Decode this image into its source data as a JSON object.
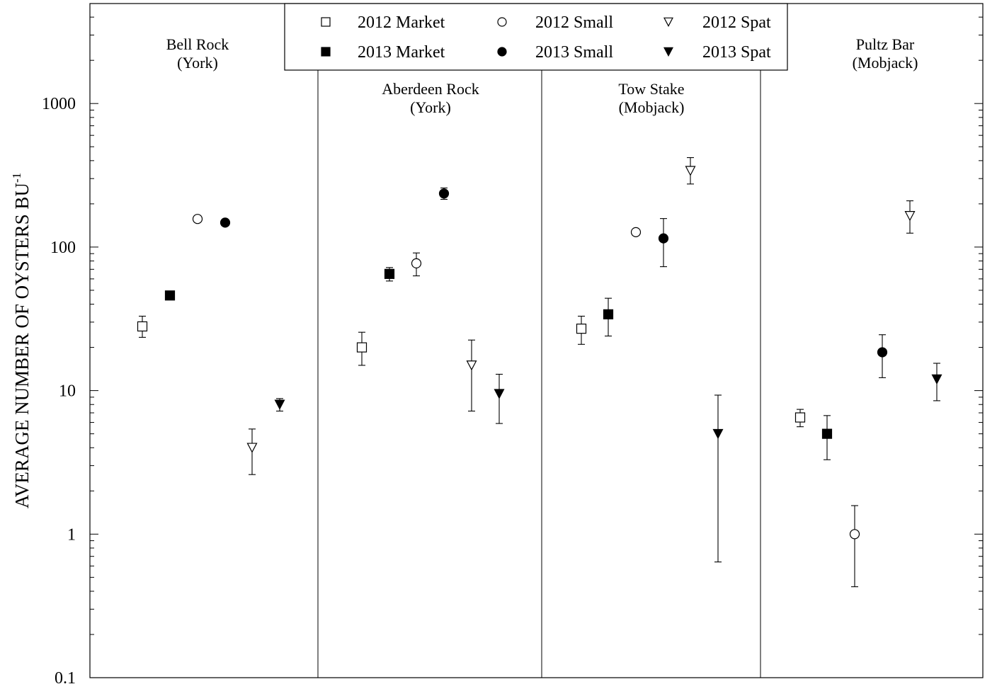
{
  "chart_data": {
    "type": "scatter",
    "ylabel": "AVERAGE NUMBER OF OYSTERS BU",
    "ylabel_superscript": "-1",
    "yscale": "log",
    "ylim": [
      0.1,
      5000
    ],
    "ytick_values": [
      0.1,
      1,
      10,
      100,
      1000
    ],
    "ytick_labels": [
      "0.1",
      "1",
      "10",
      "100",
      "1000"
    ],
    "grid": false,
    "legend_position": "top-center",
    "sites": [
      {
        "name": "Bell Rock",
        "region": "(York)"
      },
      {
        "name": "Aberdeen Rock",
        "region": "(York)"
      },
      {
        "name": "Tow Stake",
        "region": "(Mobjack)"
      },
      {
        "name": "Pultz Bar",
        "region": "(Mobjack)"
      }
    ],
    "series": [
      {
        "name": "2012 Market",
        "marker": "square",
        "filled": false,
        "values": [
          28,
          20,
          27,
          6.5
        ],
        "err_low": [
          23.5,
          15,
          21,
          5.6
        ],
        "err_high": [
          33,
          25.5,
          33,
          7.4
        ]
      },
      {
        "name": "2013 Market",
        "marker": "square",
        "filled": true,
        "values": [
          46,
          65,
          34,
          5
        ],
        "err_low": [
          46,
          58,
          24,
          3.3
        ],
        "err_high": [
          46,
          72,
          44,
          6.7
        ]
      },
      {
        "name": "2012 Small",
        "marker": "circle",
        "filled": false,
        "values": [
          157,
          77,
          127,
          1
        ],
        "err_low": [
          157,
          63,
          127,
          0.43
        ],
        "err_high": [
          157,
          91,
          127,
          1.58
        ]
      },
      {
        "name": "2013 Small",
        "marker": "circle",
        "filled": true,
        "values": [
          148,
          236,
          115,
          18.5
        ],
        "err_low": [
          148,
          215,
          73,
          12.3
        ],
        "err_high": [
          148,
          258,
          158,
          24.5
        ]
      },
      {
        "name": "2012 Spat",
        "marker": "triangle-down",
        "filled": false,
        "values": [
          4,
          15,
          340,
          165
        ],
        "err_low": [
          2.6,
          7.2,
          275,
          125
        ],
        "err_high": [
          5.4,
          22.5,
          420,
          210
        ]
      },
      {
        "name": "2013 Spat",
        "marker": "triangle-down",
        "filled": true,
        "values": [
          8,
          9.5,
          5,
          12
        ],
        "err_low": [
          7.2,
          5.9,
          0.64,
          8.5
        ],
        "err_high": [
          8.8,
          13,
          9.3,
          15.5
        ]
      }
    ],
    "colors": {
      "marker": "#000000",
      "background": "#ffffff"
    }
  }
}
